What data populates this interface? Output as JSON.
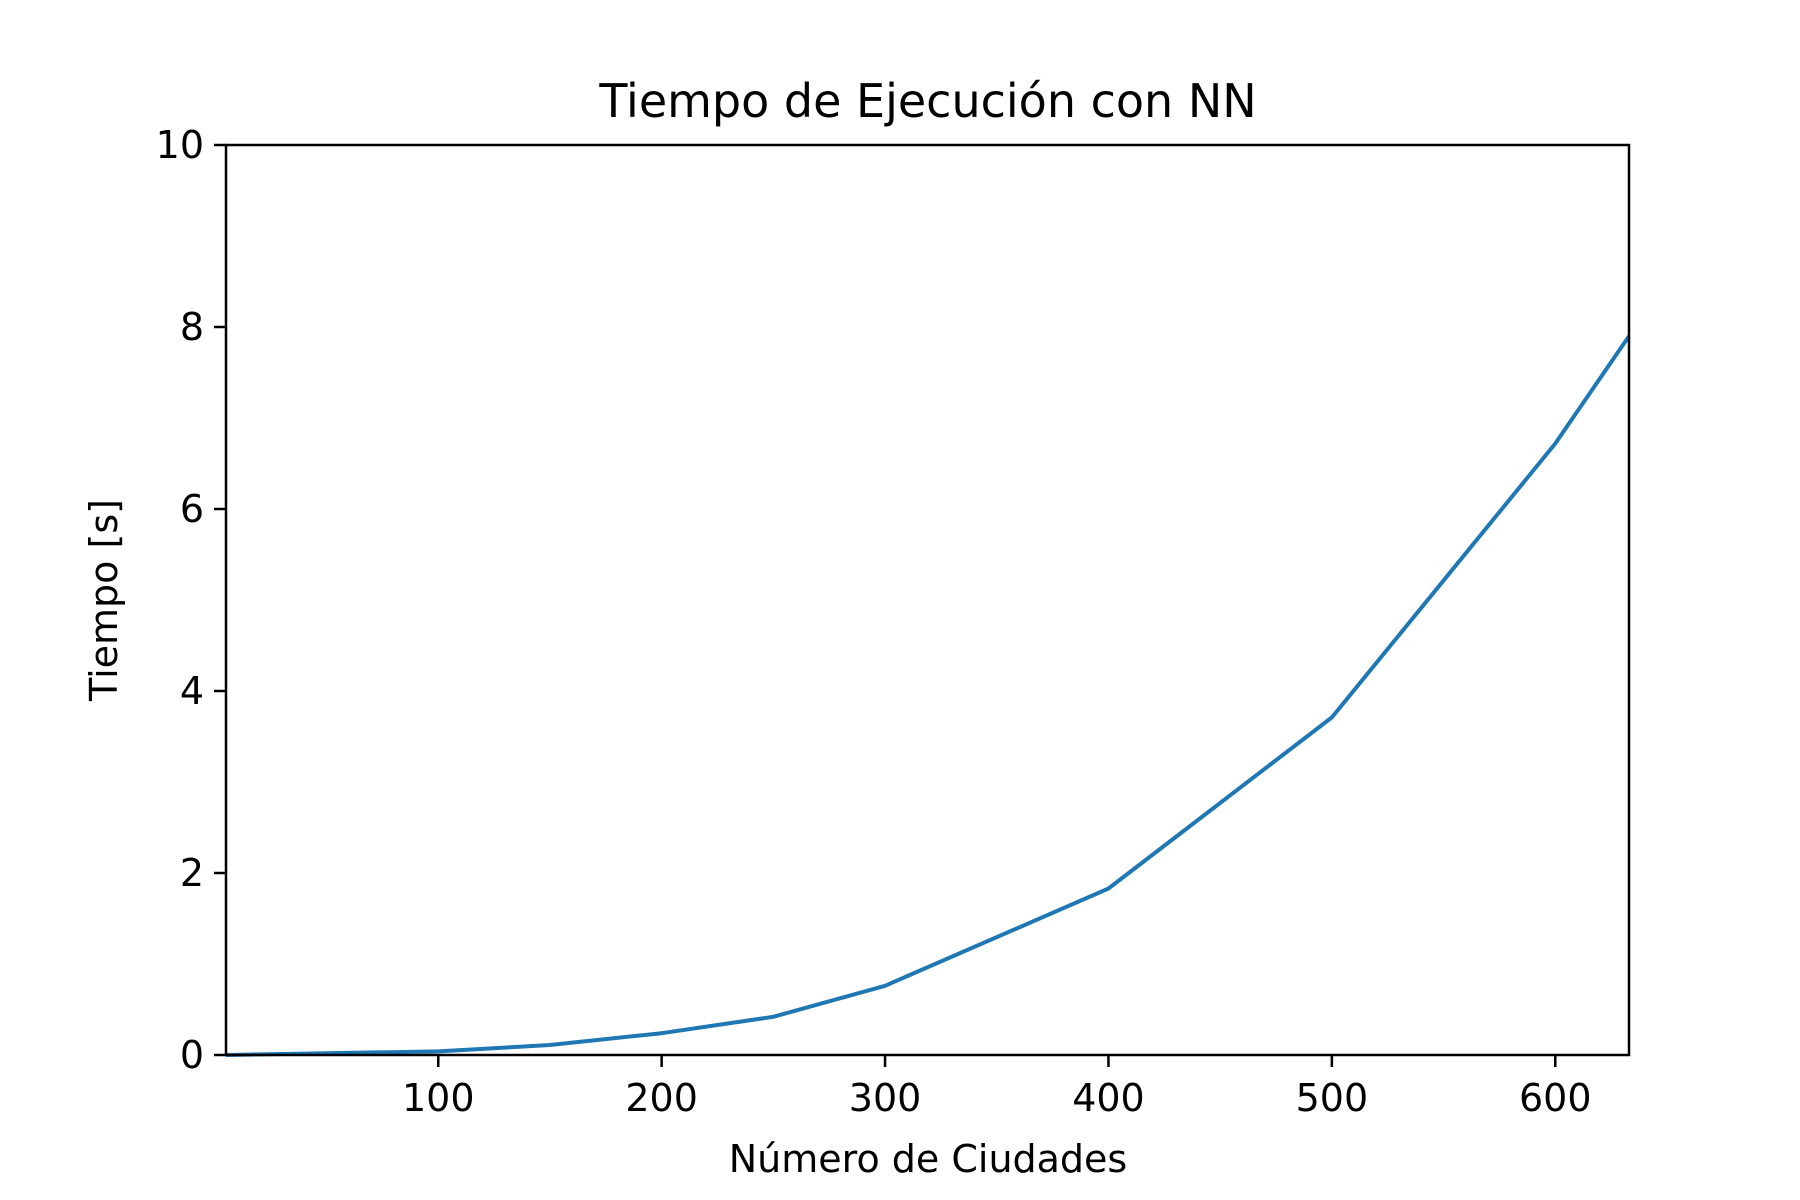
{
  "chart_data": {
    "type": "line",
    "title": "Tiempo de Ejecución con NN",
    "xlabel": "Número de Ciudades",
    "ylabel": "Tiempo [s]",
    "xlim": [
      5,
      633
    ],
    "ylim": [
      0,
      10
    ],
    "xticks": [
      "100",
      "200",
      "300",
      "400",
      "500",
      "600"
    ],
    "yticks": [
      "0",
      "2",
      "4",
      "6",
      "8",
      "10"
    ],
    "grid": false,
    "line_color": "#1f77b4",
    "series": [
      {
        "x": [
          5,
          50,
          100,
          150,
          200,
          250,
          300,
          400,
          500,
          600,
          633
        ],
        "y": [
          0.0,
          0.02,
          0.04,
          0.11,
          0.24,
          0.42,
          0.76,
          1.83,
          3.71,
          6.72,
          7.9
        ]
      }
    ]
  }
}
